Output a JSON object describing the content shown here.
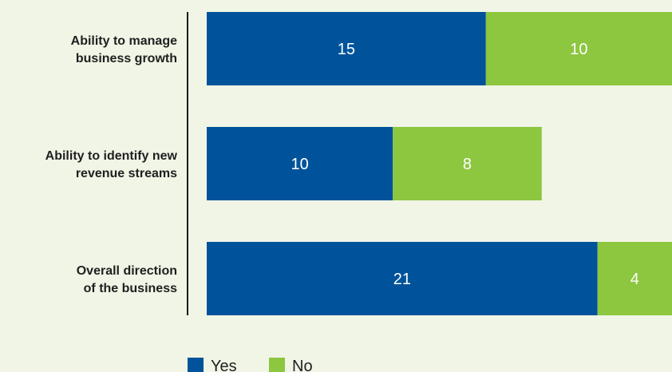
{
  "chart_data": {
    "type": "bar",
    "orientation": "horizontal",
    "stacked": true,
    "categories": [
      [
        "Ability to manage",
        "business growth"
      ],
      [
        "Ability to identify new",
        "revenue streams"
      ],
      [
        "Overall direction",
        "of the business"
      ]
    ],
    "series": [
      {
        "name": "Yes",
        "values": [
          15,
          10,
          21
        ],
        "color": "#00539b"
      },
      {
        "name": "No",
        "values": [
          10,
          8,
          4
        ],
        "color": "#8dc63f"
      }
    ],
    "xlim": [
      0,
      25
    ],
    "grid": false,
    "legend_position": "bottom",
    "title": "",
    "xlabel": "",
    "ylabel": ""
  }
}
